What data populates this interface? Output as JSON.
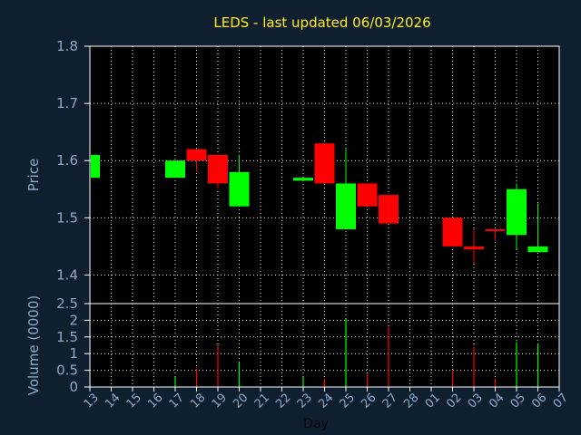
{
  "chart_data": {
    "type": "candlestick",
    "title": "LEDS - last updated 06/03/2026",
    "xlabel": "Day",
    "grid": true,
    "categories": [
      "13",
      "14",
      "15",
      "16",
      "17",
      "18",
      "19",
      "20",
      "21",
      "22",
      "23",
      "24",
      "25",
      "26",
      "27",
      "28",
      "01",
      "02",
      "03",
      "04",
      "05",
      "06",
      "07"
    ],
    "price": {
      "ylabel": "Price",
      "ylim": [
        1.35,
        1.8
      ],
      "yticks": [
        "1.4",
        "1.5",
        "1.6",
        "1.7",
        "1.8"
      ],
      "candles": [
        {
          "day": "13",
          "open": 1.57,
          "high": 1.61,
          "low": 1.57,
          "close": 1.61
        },
        {
          "day": "17",
          "open": 1.57,
          "high": 1.6,
          "low": 1.57,
          "close": 1.6
        },
        {
          "day": "18",
          "open": 1.62,
          "high": 1.62,
          "low": 1.58,
          "close": 1.6
        },
        {
          "day": "19",
          "open": 1.61,
          "high": 1.61,
          "low": 1.55,
          "close": 1.56
        },
        {
          "day": "20",
          "open": 1.52,
          "high": 1.61,
          "low": 1.52,
          "close": 1.58
        },
        {
          "day": "23",
          "open": 1.565,
          "high": 1.57,
          "low": 1.565,
          "close": 1.57
        },
        {
          "day": "24",
          "open": 1.63,
          "high": 1.63,
          "low": 1.56,
          "close": 1.56
        },
        {
          "day": "25",
          "open": 1.48,
          "high": 1.62,
          "low": 1.48,
          "close": 1.56
        },
        {
          "day": "26",
          "open": 1.56,
          "high": 1.56,
          "low": 1.52,
          "close": 1.52
        },
        {
          "day": "27",
          "open": 1.54,
          "high": 1.54,
          "low": 1.49,
          "close": 1.49
        },
        {
          "day": "02",
          "open": 1.5,
          "high": 1.5,
          "low": 1.45,
          "close": 1.45
        },
        {
          "day": "03",
          "open": 1.45,
          "high": 1.48,
          "low": 1.42,
          "close": 1.445
        },
        {
          "day": "04",
          "open": 1.48,
          "high": 1.48,
          "low": 1.46,
          "close": 1.478
        },
        {
          "day": "05",
          "open": 1.47,
          "high": 1.56,
          "low": 1.445,
          "close": 1.55
        },
        {
          "day": "06",
          "open": 1.44,
          "high": 1.525,
          "low": 1.44,
          "close": 1.45
        }
      ]
    },
    "volume": {
      "ylabel": "Volume (0000)",
      "ylim": [
        0,
        2.5
      ],
      "yticks": [
        "0",
        "0.5",
        "1",
        "1.5",
        "2",
        "2.5"
      ],
      "bars": [
        {
          "day": "17",
          "value": 0.3,
          "color": "green"
        },
        {
          "day": "18",
          "value": 0.55,
          "color": "red"
        },
        {
          "day": "19",
          "value": 1.25,
          "color": "red"
        },
        {
          "day": "20",
          "value": 0.75,
          "color": "green"
        },
        {
          "day": "23",
          "value": 0.3,
          "color": "green"
        },
        {
          "day": "24",
          "value": 0.25,
          "color": "red"
        },
        {
          "day": "25",
          "value": 2.05,
          "color": "green"
        },
        {
          "day": "26",
          "value": 0.4,
          "color": "red"
        },
        {
          "day": "27",
          "value": 1.8,
          "color": "red"
        },
        {
          "day": "02",
          "value": 0.5,
          "color": "red"
        },
        {
          "day": "03",
          "value": 1.2,
          "color": "red"
        },
        {
          "day": "04",
          "value": 0.25,
          "color": "red"
        },
        {
          "day": "05",
          "value": 1.35,
          "color": "green"
        },
        {
          "day": "06",
          "value": 1.3,
          "color": "green"
        }
      ]
    },
    "colors": {
      "up": "#00ff00",
      "down": "#ff0000",
      "background": "#0f1f30",
      "plot_background": "#000000",
      "title": "#ffee22",
      "axis_text": "#8ea9c9"
    }
  }
}
